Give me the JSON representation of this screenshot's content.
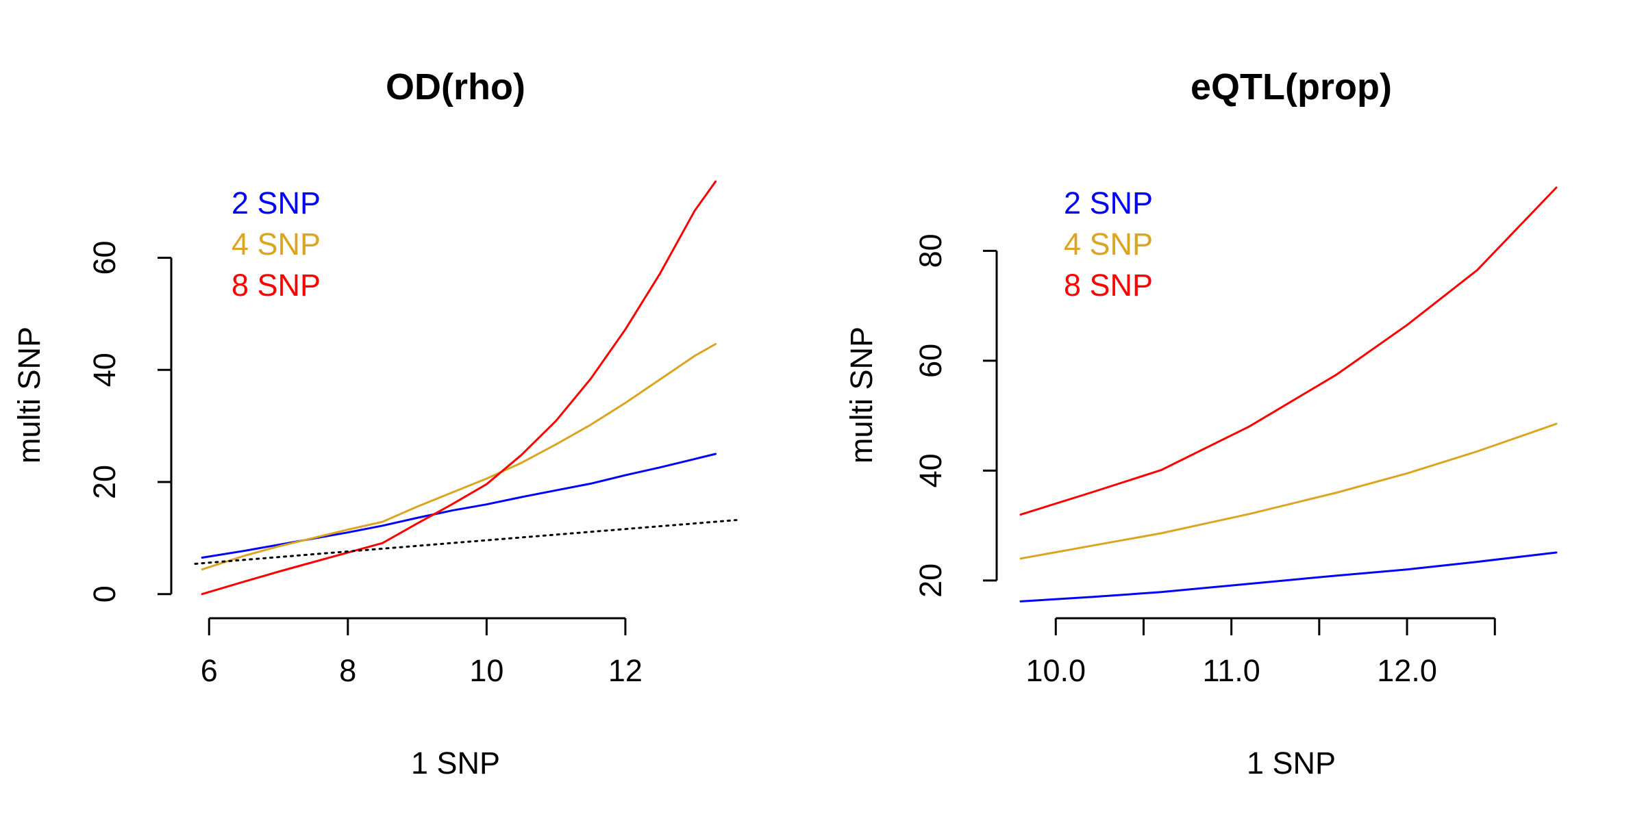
{
  "chart_data": [
    {
      "type": "line",
      "title": "OD(rho)",
      "xlabel": "1 SNP",
      "ylabel": "multi SNP",
      "xlim": [
        5.8,
        13.6
      ],
      "ylim": [
        -1.5,
        73
      ],
      "x_ticks": [
        6,
        8,
        10,
        12
      ],
      "x_tick_labels": [
        "6",
        "8",
        "10",
        "12"
      ],
      "y_ticks": [
        0,
        20,
        40,
        60
      ],
      "y_tick_labels": [
        "0",
        "20",
        "40",
        "60"
      ],
      "grid": false,
      "legend_position": "top-left",
      "series": [
        {
          "name": "2 SNP",
          "color": "#0000FF",
          "style": "solid",
          "points": [
            [
              5.9,
              6.5
            ],
            [
              6.5,
              7.7
            ],
            [
              7.0,
              8.8
            ],
            [
              7.5,
              9.9
            ],
            [
              8.0,
              11.0
            ],
            [
              8.5,
              12.2
            ],
            [
              9.0,
              13.6
            ],
            [
              9.5,
              14.9
            ],
            [
              10.0,
              16.0
            ],
            [
              10.5,
              17.3
            ],
            [
              11.0,
              18.5
            ],
            [
              11.5,
              19.7
            ],
            [
              12.0,
              21.2
            ],
            [
              12.5,
              22.6
            ],
            [
              13.0,
              24.1
            ],
            [
              13.3,
              25.0
            ]
          ]
        },
        {
          "name": "4 SNP",
          "color": "#DAA520",
          "style": "solid",
          "points": [
            [
              5.9,
              4.4
            ],
            [
              6.5,
              6.8
            ],
            [
              7.0,
              8.5
            ],
            [
              7.5,
              10.0
            ],
            [
              8.0,
              11.5
            ],
            [
              8.5,
              12.9
            ],
            [
              9.0,
              15.6
            ],
            [
              9.5,
              18.1
            ],
            [
              10.0,
              20.6
            ],
            [
              10.5,
              23.4
            ],
            [
              11.0,
              26.7
            ],
            [
              11.5,
              30.2
            ],
            [
              12.0,
              34.1
            ],
            [
              12.5,
              38.3
            ],
            [
              13.0,
              42.5
            ],
            [
              13.3,
              44.6
            ]
          ]
        },
        {
          "name": "8 SNP",
          "color": "#FF0000",
          "style": "solid",
          "points": [
            [
              5.9,
              0.0
            ],
            [
              6.5,
              2.2
            ],
            [
              7.0,
              4.0
            ],
            [
              7.5,
              5.7
            ],
            [
              8.0,
              7.4
            ],
            [
              8.5,
              9.1
            ],
            [
              9.0,
              12.6
            ],
            [
              9.5,
              16.0
            ],
            [
              10.0,
              19.6
            ],
            [
              10.5,
              24.8
            ],
            [
              11.0,
              30.9
            ],
            [
              11.5,
              38.4
            ],
            [
              12.0,
              47.2
            ],
            [
              12.5,
              57.2
            ],
            [
              13.0,
              68.4
            ],
            [
              13.3,
              73.6
            ]
          ]
        },
        {
          "name": "",
          "color": "#000000",
          "style": "dotted",
          "points": [
            [
              5.8,
              5.4
            ],
            [
              13.6,
              13.2
            ]
          ]
        }
      ],
      "legend": [
        {
          "label": "2 SNP",
          "color": "#0000FF"
        },
        {
          "label": "4 SNP",
          "color": "#DAA520"
        },
        {
          "label": "8 SNP",
          "color": "#FF0000"
        }
      ]
    },
    {
      "type": "line",
      "title": "eQTL(prop)",
      "xlabel": "1 SNP",
      "ylabel": "multi SNP",
      "xlim": [
        9.8,
        12.85
      ],
      "ylim": [
        16,
        92
      ],
      "x_ticks": [
        10.0,
        10.5,
        11.0,
        11.5,
        12.0,
        12.5
      ],
      "x_tick_labels": [
        "10.0",
        "",
        "11.0",
        "",
        "12.0",
        ""
      ],
      "y_ticks": [
        20,
        40,
        60,
        80
      ],
      "y_tick_labels": [
        "20",
        "40",
        "60",
        "80"
      ],
      "grid": false,
      "legend_position": "top-left",
      "series": [
        {
          "name": "2 SNP",
          "color": "#0000FF",
          "style": "solid",
          "points": [
            [
              9.8,
              16.2
            ],
            [
              10.2,
              17.0
            ],
            [
              10.6,
              17.9
            ],
            [
              11.1,
              19.4
            ],
            [
              11.6,
              20.9
            ],
            [
              12.0,
              22.0
            ],
            [
              12.4,
              23.4
            ],
            [
              12.85,
              25.1
            ]
          ]
        },
        {
          "name": "4 SNP",
          "color": "#DAA520",
          "style": "solid",
          "points": [
            [
              9.8,
              24.0
            ],
            [
              10.2,
              26.3
            ],
            [
              10.6,
              28.6
            ],
            [
              11.1,
              32.1
            ],
            [
              11.6,
              36.0
            ],
            [
              12.0,
              39.5
            ],
            [
              12.4,
              43.5
            ],
            [
              12.85,
              48.5
            ]
          ]
        },
        {
          "name": "8 SNP",
          "color": "#FF0000",
          "style": "solid",
          "points": [
            [
              9.8,
              32.0
            ],
            [
              10.2,
              36.0
            ],
            [
              10.6,
              40.1
            ],
            [
              11.1,
              48.0
            ],
            [
              11.6,
              57.5
            ],
            [
              12.0,
              66.5
            ],
            [
              12.4,
              76.5
            ],
            [
              12.85,
              91.5
            ]
          ]
        }
      ],
      "legend": [
        {
          "label": "2 SNP",
          "color": "#0000FF"
        },
        {
          "label": "4 SNP",
          "color": "#DAA520"
        },
        {
          "label": "8 SNP",
          "color": "#FF0000"
        }
      ]
    }
  ]
}
